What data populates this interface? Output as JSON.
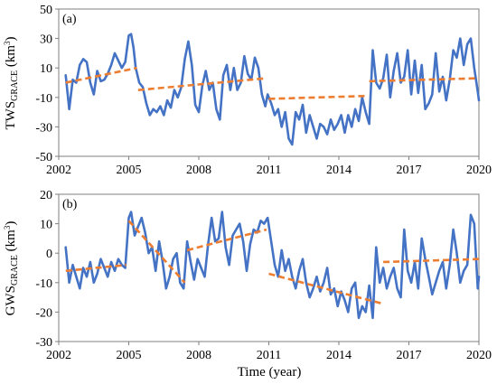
{
  "chart_data": [
    {
      "type": "line",
      "panel_label": "(a)",
      "ylabel": {
        "main": "TWS",
        "sub": "GRACE",
        "unit_open": " (km",
        "unit_sup": "3",
        "unit_close": ")"
      },
      "xlabel": "",
      "xlim": [
        2002,
        2020
      ],
      "ylim": [
        -50,
        50
      ],
      "x_ticks": [
        2002,
        2005,
        2008,
        2011,
        2014,
        2017,
        2020
      ],
      "y_ticks": [
        50,
        30,
        10,
        -10,
        -30,
        -50
      ],
      "grid": false,
      "colors": {
        "series": "#4472c4",
        "trend": "#ed7d31"
      },
      "series": [
        {
          "x": [
            2002.3,
            2002.45,
            2002.6,
            2002.75,
            2002.9,
            2003.05,
            2003.2,
            2003.35,
            2003.5,
            2003.65,
            2003.8,
            2003.95,
            2004.1,
            2004.25,
            2004.4,
            2004.55,
            2004.7,
            2004.85,
            2005.0,
            2005.1,
            2005.2,
            2005.3,
            2005.45,
            2005.6,
            2005.75,
            2005.9,
            2006.05,
            2006.2,
            2006.35,
            2006.5,
            2006.65,
            2006.8,
            2006.95,
            2007.1,
            2007.25,
            2007.4,
            2007.55,
            2007.7,
            2007.85,
            2008.0,
            2008.15,
            2008.3,
            2008.45,
            2008.6,
            2008.75,
            2008.9,
            2009.05,
            2009.2,
            2009.35,
            2009.5,
            2009.65,
            2009.8,
            2009.95,
            2010.1,
            2010.25,
            2010.4,
            2010.55,
            2010.7,
            2010.85,
            2010.95,
            2011.1,
            2011.25,
            2011.4,
            2011.55,
            2011.7,
            2011.85,
            2012.0,
            2012.15,
            2012.3,
            2012.45,
            2012.6,
            2012.75,
            2012.9,
            2013.05,
            2013.2,
            2013.35,
            2013.5,
            2013.65,
            2013.8,
            2013.95,
            2014.1,
            2014.25,
            2014.4,
            2014.55,
            2014.7,
            2014.85,
            2015.0,
            2015.15,
            2015.3,
            2015.45,
            2015.6,
            2015.75,
            2015.9,
            2016.05,
            2016.2,
            2016.35,
            2016.5,
            2016.65,
            2016.8,
            2016.95,
            2017.1,
            2017.25,
            2017.4,
            2017.55,
            2017.7,
            2017.85,
            2018.0,
            2018.15,
            2018.3,
            2018.45,
            2018.6,
            2018.75,
            2018.9,
            2019.05,
            2019.2,
            2019.35,
            2019.5,
            2019.65,
            2019.8,
            2019.95,
            2020.0
          ],
          "y": [
            5,
            -18,
            2,
            0,
            12,
            16,
            14,
            0,
            -8,
            8,
            1,
            2,
            6,
            12,
            20,
            15,
            10,
            14,
            32,
            33,
            24,
            10,
            0,
            -3,
            -14,
            -22,
            -18,
            -20,
            -16,
            -22,
            -12,
            -17,
            -5,
            -10,
            -3,
            16,
            28,
            12,
            -15,
            -20,
            -2,
            8,
            -5,
            0,
            -18,
            -25,
            5,
            12,
            -5,
            10,
            -5,
            0,
            18,
            6,
            2,
            17,
            10,
            -8,
            -16,
            -8,
            -14,
            -22,
            -18,
            -30,
            -20,
            -38,
            -42,
            -20,
            -25,
            -15,
            -34,
            -22,
            -30,
            -38,
            -28,
            -30,
            -35,
            -25,
            -32,
            -28,
            -22,
            -34,
            -22,
            -30,
            -18,
            -26,
            -10,
            -20,
            -28,
            22,
            0,
            -4,
            3,
            19,
            -10,
            8,
            20,
            0,
            4,
            22,
            -8,
            15,
            -7,
            12,
            -18,
            -14,
            -8,
            20,
            -6,
            4,
            -12,
            2,
            22,
            17,
            30,
            12,
            26,
            30,
            10,
            -6,
            -12
          ]
        }
      ],
      "trends": [
        {
          "x": [
            2002.3,
            2005.35
          ],
          "y": [
            0,
            10
          ]
        },
        {
          "x": [
            2005.4,
            2010.9
          ],
          "y": [
            -5,
            3
          ]
        },
        {
          "x": [
            2011.0,
            2015.2
          ],
          "y": [
            -11,
            -9
          ]
        },
        {
          "x": [
            2015.3,
            2020.0
          ],
          "y": [
            1,
            3
          ]
        }
      ]
    },
    {
      "type": "line",
      "panel_label": "(b)",
      "ylabel": {
        "main": "GWS",
        "sub": "GRACE",
        "unit_open": " (km",
        "unit_sup": "3",
        "unit_close": ")"
      },
      "xlabel": "Time (year)",
      "xlim": [
        2002,
        2020
      ],
      "ylim": [
        -30,
        20
      ],
      "x_ticks": [
        2002,
        2005,
        2008,
        2011,
        2014,
        2017,
        2020
      ],
      "y_ticks": [
        20,
        10,
        0,
        -10,
        -20,
        -30
      ],
      "grid": false,
      "colors": {
        "series": "#4472c4",
        "trend": "#ed7d31"
      },
      "series": [
        {
          "x": [
            2002.3,
            2002.45,
            2002.6,
            2002.75,
            2002.9,
            2003.05,
            2003.2,
            2003.35,
            2003.5,
            2003.65,
            2003.8,
            2003.95,
            2004.1,
            2004.25,
            2004.4,
            2004.55,
            2004.7,
            2004.85,
            2005.0,
            2005.1,
            2005.25,
            2005.4,
            2005.55,
            2005.7,
            2005.85,
            2006.0,
            2006.15,
            2006.3,
            2006.45,
            2006.6,
            2006.75,
            2006.9,
            2007.05,
            2007.2,
            2007.35,
            2007.5,
            2007.65,
            2007.8,
            2007.95,
            2008.1,
            2008.25,
            2008.4,
            2008.55,
            2008.7,
            2008.85,
            2009.0,
            2009.15,
            2009.3,
            2009.45,
            2009.6,
            2009.75,
            2009.9,
            2010.05,
            2010.2,
            2010.35,
            2010.5,
            2010.65,
            2010.8,
            2010.95,
            2011.1,
            2011.25,
            2011.4,
            2011.55,
            2011.7,
            2011.85,
            2012.0,
            2012.15,
            2012.3,
            2012.45,
            2012.6,
            2012.75,
            2012.9,
            2013.05,
            2013.2,
            2013.35,
            2013.5,
            2013.65,
            2013.8,
            2013.95,
            2014.1,
            2014.25,
            2014.4,
            2014.55,
            2014.7,
            2014.85,
            2015.0,
            2015.15,
            2015.3,
            2015.45,
            2015.6,
            2015.75,
            2015.9,
            2016.05,
            2016.2,
            2016.35,
            2016.5,
            2016.65,
            2016.8,
            2016.95,
            2017.1,
            2017.25,
            2017.4,
            2017.55,
            2017.7,
            2017.85,
            2018.0,
            2018.15,
            2018.3,
            2018.45,
            2018.6,
            2018.75,
            2018.9,
            2019.05,
            2019.2,
            2019.35,
            2019.5,
            2019.65,
            2019.8,
            2019.95,
            2020.0
          ],
          "y": [
            2,
            -10,
            -4,
            -8,
            -12,
            -5,
            -8,
            -3,
            -10,
            -7,
            -2,
            -5,
            -8,
            -3,
            -6,
            -2,
            -4,
            -5,
            12,
            14,
            6,
            9,
            12,
            7,
            0,
            2,
            -6,
            4,
            -3,
            -12,
            -8,
            -2,
            0,
            -10,
            -12,
            4,
            -3,
            -9,
            -2,
            -5,
            -8,
            3,
            12,
            4,
            5,
            14,
            2,
            -4,
            6,
            8,
            10,
            4,
            -6,
            3,
            8,
            7,
            11,
            10,
            12,
            4,
            -4,
            -8,
            1,
            -6,
            -2,
            -8,
            -12,
            -6,
            -2,
            -10,
            -15,
            -12,
            -8,
            -13,
            -10,
            -5,
            -14,
            -12,
            -18,
            -13,
            -16,
            -20,
            -12,
            -10,
            -22,
            -18,
            -20,
            -11,
            -22,
            2,
            -10,
            -5,
            -12,
            -8,
            -5,
            -12,
            -15,
            8,
            -6,
            -10,
            -3,
            -12,
            5,
            -2,
            -8,
            -14,
            -10,
            -6,
            -3,
            -12,
            -4,
            8,
            0,
            -10,
            -6,
            -4,
            13,
            10,
            -12,
            -8
          ]
        }
      ],
      "trends": [
        {
          "x": [
            2002.3,
            2004.9
          ],
          "y": [
            -6,
            -4
          ]
        },
        {
          "x": [
            2005.0,
            2007.4
          ],
          "y": [
            11,
            -10
          ]
        },
        {
          "x": [
            2007.5,
            2010.9
          ],
          "y": [
            1,
            8
          ]
        },
        {
          "x": [
            2011.0,
            2015.8
          ],
          "y": [
            -7,
            -17
          ]
        },
        {
          "x": [
            2015.9,
            2020.0
          ],
          "y": [
            -3,
            -2
          ]
        }
      ]
    }
  ]
}
